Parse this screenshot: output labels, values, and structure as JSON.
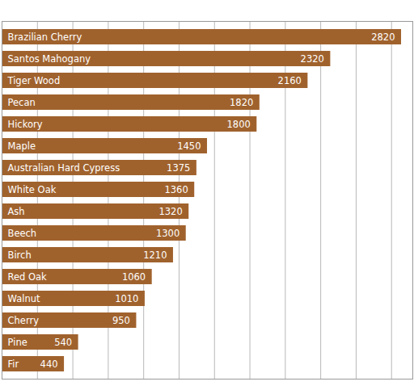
{
  "chart_data": {
    "type": "bar",
    "orientation": "horizontal",
    "categories": [
      "Brazilian Cherry",
      "Santos Mahogany",
      "Tiger Wood",
      "Pecan",
      "Hickory",
      "Maple",
      "Australian Hard Cypress",
      "White Oak",
      "Ash",
      "Beech",
      "Birch",
      "Red Oak",
      "Walnut",
      "Cherry",
      "Pine",
      "Fir"
    ],
    "values": [
      2820,
      2320,
      2160,
      1820,
      1800,
      1450,
      1375,
      1360,
      1320,
      1300,
      1210,
      1060,
      1010,
      950,
      540,
      440
    ],
    "color": "#a0622d",
    "xlim": [
      0,
      2900
    ],
    "xticks": [
      0,
      250,
      500,
      750,
      1000,
      1250,
      1500,
      1750,
      2000,
      2250,
      2500,
      2750
    ],
    "grid": true,
    "data_labels": true,
    "tick_labels": false
  }
}
